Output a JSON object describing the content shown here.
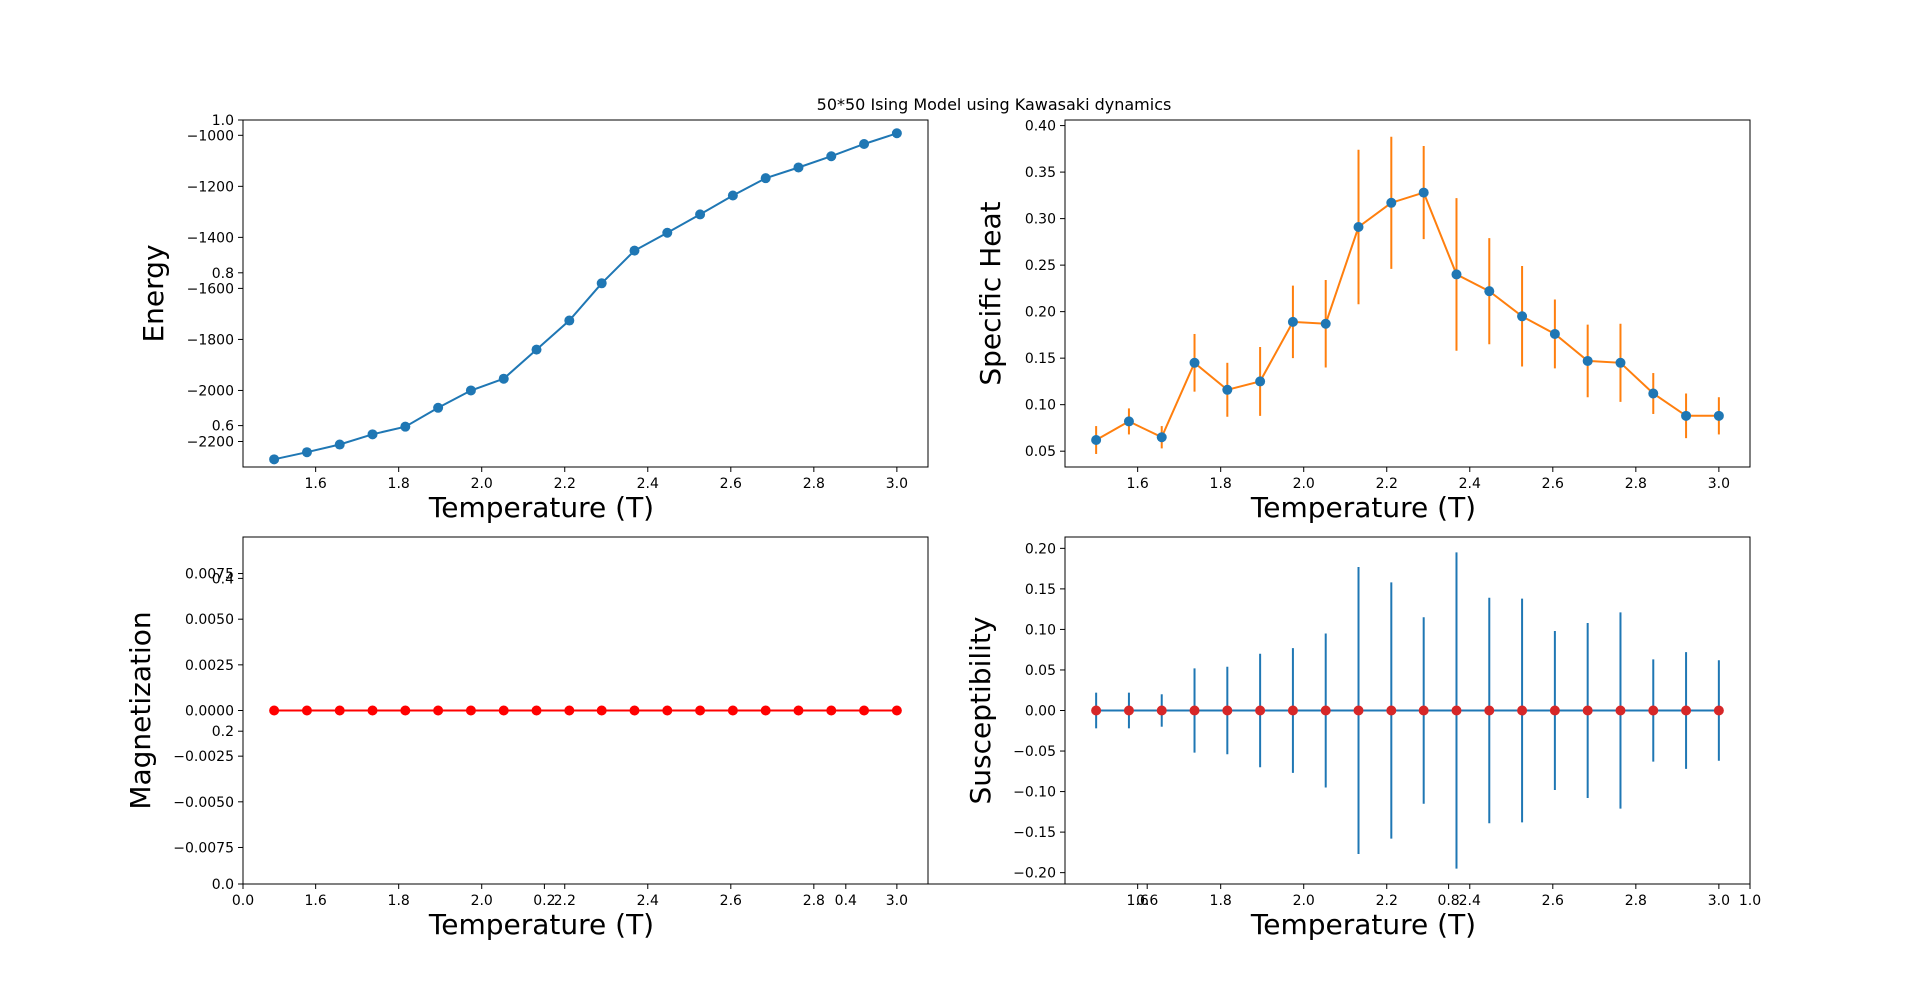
{
  "figure": {
    "title": "50*50 Ising Model using Kawasaki dynamics",
    "bg_axes_ticks": {
      "x": [
        "0.0",
        "0.2",
        "0.4",
        "0.6",
        "0.8",
        "1.0"
      ],
      "y": [
        "0.0",
        "0.2",
        "0.4",
        "0.6",
        "0.8",
        "1.0"
      ]
    }
  },
  "chart_data": [
    {
      "type": "line",
      "name": "energy",
      "xlabel": "Temperature (T)",
      "ylabel": "Energy",
      "xlim": [
        1.425,
        3.075
      ],
      "ylim": [
        -2300,
        -940
      ],
      "xticks": [
        1.6,
        1.8,
        2.0,
        2.2,
        2.4,
        2.6,
        2.8,
        3.0
      ],
      "xtick_labels": [
        "1.6",
        "1.8",
        "2.0",
        "2.2",
        "2.4",
        "2.6",
        "2.8",
        "3.0"
      ],
      "yticks": [
        -2200,
        -2000,
        -1800,
        -1600,
        -1400,
        -1200,
        -1000
      ],
      "ytick_labels": [
        "−2200",
        "−2000",
        "−1800",
        "−1600",
        "−1400",
        "−1200",
        "−1000"
      ],
      "color": "#1f77b4",
      "marker_color": "#1f77b4",
      "x": [
        1.5,
        1.579,
        1.658,
        1.737,
        1.816,
        1.895,
        1.974,
        2.053,
        2.132,
        2.211,
        2.289,
        2.368,
        2.447,
        2.526,
        2.605,
        2.684,
        2.763,
        2.842,
        2.921,
        3.0
      ],
      "y": [
        -2270,
        -2242,
        -2212,
        -2172,
        -2142,
        -2068,
        -2000,
        -1954,
        -1840,
        -1726,
        -1580,
        -1452,
        -1382,
        -1310,
        -1236,
        -1168,
        -1126,
        -1082,
        -1034,
        -992
      ]
    },
    {
      "type": "line",
      "name": "specific-heat",
      "xlabel": "Temperature (T)",
      "ylabel": "Specific Heat",
      "xlim": [
        1.425,
        3.075
      ],
      "ylim": [
        0.033,
        0.406
      ],
      "xticks": [
        1.6,
        1.8,
        2.0,
        2.2,
        2.4,
        2.6,
        2.8,
        3.0
      ],
      "xtick_labels": [
        "1.6",
        "1.8",
        "2.0",
        "2.2",
        "2.4",
        "2.6",
        "2.8",
        "3.0"
      ],
      "yticks": [
        0.05,
        0.1,
        0.15,
        0.2,
        0.25,
        0.3,
        0.35,
        0.4
      ],
      "ytick_labels": [
        "0.05",
        "0.10",
        "0.15",
        "0.20",
        "0.25",
        "0.30",
        "0.35",
        "0.40"
      ],
      "color": "#ff7f0e",
      "marker_color": "#1f77b4",
      "errorbar_color": "#ff7f0e",
      "x": [
        1.5,
        1.579,
        1.658,
        1.737,
        1.816,
        1.895,
        1.974,
        2.053,
        2.132,
        2.211,
        2.289,
        2.368,
        2.447,
        2.526,
        2.605,
        2.684,
        2.763,
        2.842,
        2.921,
        3.0
      ],
      "y": [
        0.062,
        0.082,
        0.065,
        0.145,
        0.116,
        0.125,
        0.189,
        0.187,
        0.291,
        0.317,
        0.328,
        0.24,
        0.222,
        0.195,
        0.176,
        0.147,
        0.145,
        0.112,
        0.088,
        0.088
      ],
      "err": [
        0.015,
        0.014,
        0.012,
        0.031,
        0.029,
        0.037,
        0.039,
        0.047,
        0.083,
        0.071,
        0.05,
        0.082,
        0.057,
        0.054,
        0.037,
        0.039,
        0.042,
        0.022,
        0.024,
        0.02
      ]
    },
    {
      "type": "line",
      "name": "magnetization",
      "xlabel": "Temperature (T)",
      "ylabel": "Magnetization",
      "xlim": [
        1.425,
        3.075
      ],
      "ylim": [
        -0.0095,
        0.0095
      ],
      "xticks": [
        1.6,
        1.8,
        2.0,
        2.2,
        2.4,
        2.6,
        2.8,
        3.0
      ],
      "xtick_labels": [
        "1.6",
        "1.8",
        "2.0",
        "2.2",
        "2.4",
        "2.6",
        "2.8",
        "3.0"
      ],
      "yticks": [
        -0.0075,
        -0.005,
        -0.0025,
        0.0,
        0.0025,
        0.005,
        0.0075
      ],
      "ytick_labels": [
        "−0.0075",
        "−0.0050",
        "−0.0025",
        "0.0000",
        "0.0025",
        "0.0050",
        "0.0075"
      ],
      "color": "#ff0000",
      "marker_color": "#ff0000",
      "x": [
        1.5,
        1.579,
        1.658,
        1.737,
        1.816,
        1.895,
        1.974,
        2.053,
        2.132,
        2.211,
        2.289,
        2.368,
        2.447,
        2.526,
        2.605,
        2.684,
        2.763,
        2.842,
        2.921,
        3.0
      ],
      "y": [
        0,
        0,
        0,
        0,
        0,
        0,
        0,
        0,
        0,
        0,
        0,
        0,
        0,
        0,
        0,
        0,
        0,
        0,
        0,
        0
      ]
    },
    {
      "type": "line",
      "name": "susceptibility",
      "xlabel": "Temperature (T)",
      "ylabel": "Susceptibility",
      "xlim": [
        1.425,
        3.075
      ],
      "ylim": [
        -0.214,
        0.214
      ],
      "xticks": [
        1.6,
        1.8,
        2.0,
        2.2,
        2.4,
        2.6,
        2.8,
        3.0
      ],
      "xtick_labels": [
        "1.6",
        "1.8",
        "2.0",
        "2.2",
        "2.4",
        "2.6",
        "2.8",
        "3.0"
      ],
      "yticks": [
        -0.2,
        -0.15,
        -0.1,
        -0.05,
        0.0,
        0.05,
        0.1,
        0.15,
        0.2
      ],
      "ytick_labels": [
        "−0.20",
        "−0.15",
        "−0.10",
        "−0.05",
        "0.00",
        "0.05",
        "0.10",
        "0.15",
        "0.20"
      ],
      "color": "#1f77b4",
      "marker_color": "#d62728",
      "errorbar_color": "#1f77b4",
      "x": [
        1.5,
        1.579,
        1.658,
        1.737,
        1.816,
        1.895,
        1.974,
        2.053,
        2.132,
        2.211,
        2.289,
        2.368,
        2.447,
        2.526,
        2.605,
        2.684,
        2.763,
        2.842,
        2.921,
        3.0
      ],
      "y": [
        0,
        0,
        0,
        0,
        0,
        0,
        0,
        0,
        0,
        0,
        0,
        0,
        0,
        0,
        0,
        0,
        0,
        0,
        0,
        0
      ],
      "err": [
        0.022,
        0.022,
        0.02,
        0.052,
        0.054,
        0.07,
        0.077,
        0.095,
        0.177,
        0.158,
        0.115,
        0.195,
        0.139,
        0.138,
        0.098,
        0.108,
        0.121,
        0.063,
        0.072,
        0.062
      ]
    }
  ]
}
